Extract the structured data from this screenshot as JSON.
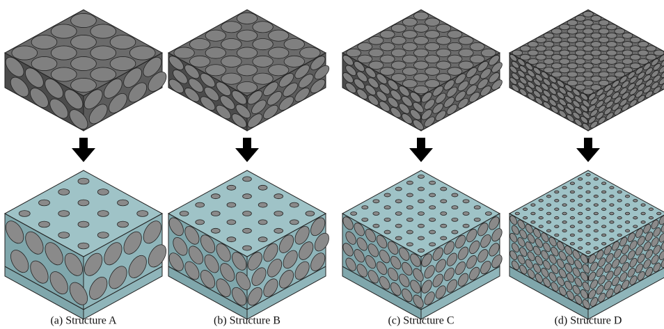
{
  "panels": [
    {
      "caption": "(a) Structure A"
    },
    {
      "caption": "(b) Structure B"
    },
    {
      "caption": "(c) Structure C"
    },
    {
      "caption": "(d) Structure D"
    }
  ]
}
